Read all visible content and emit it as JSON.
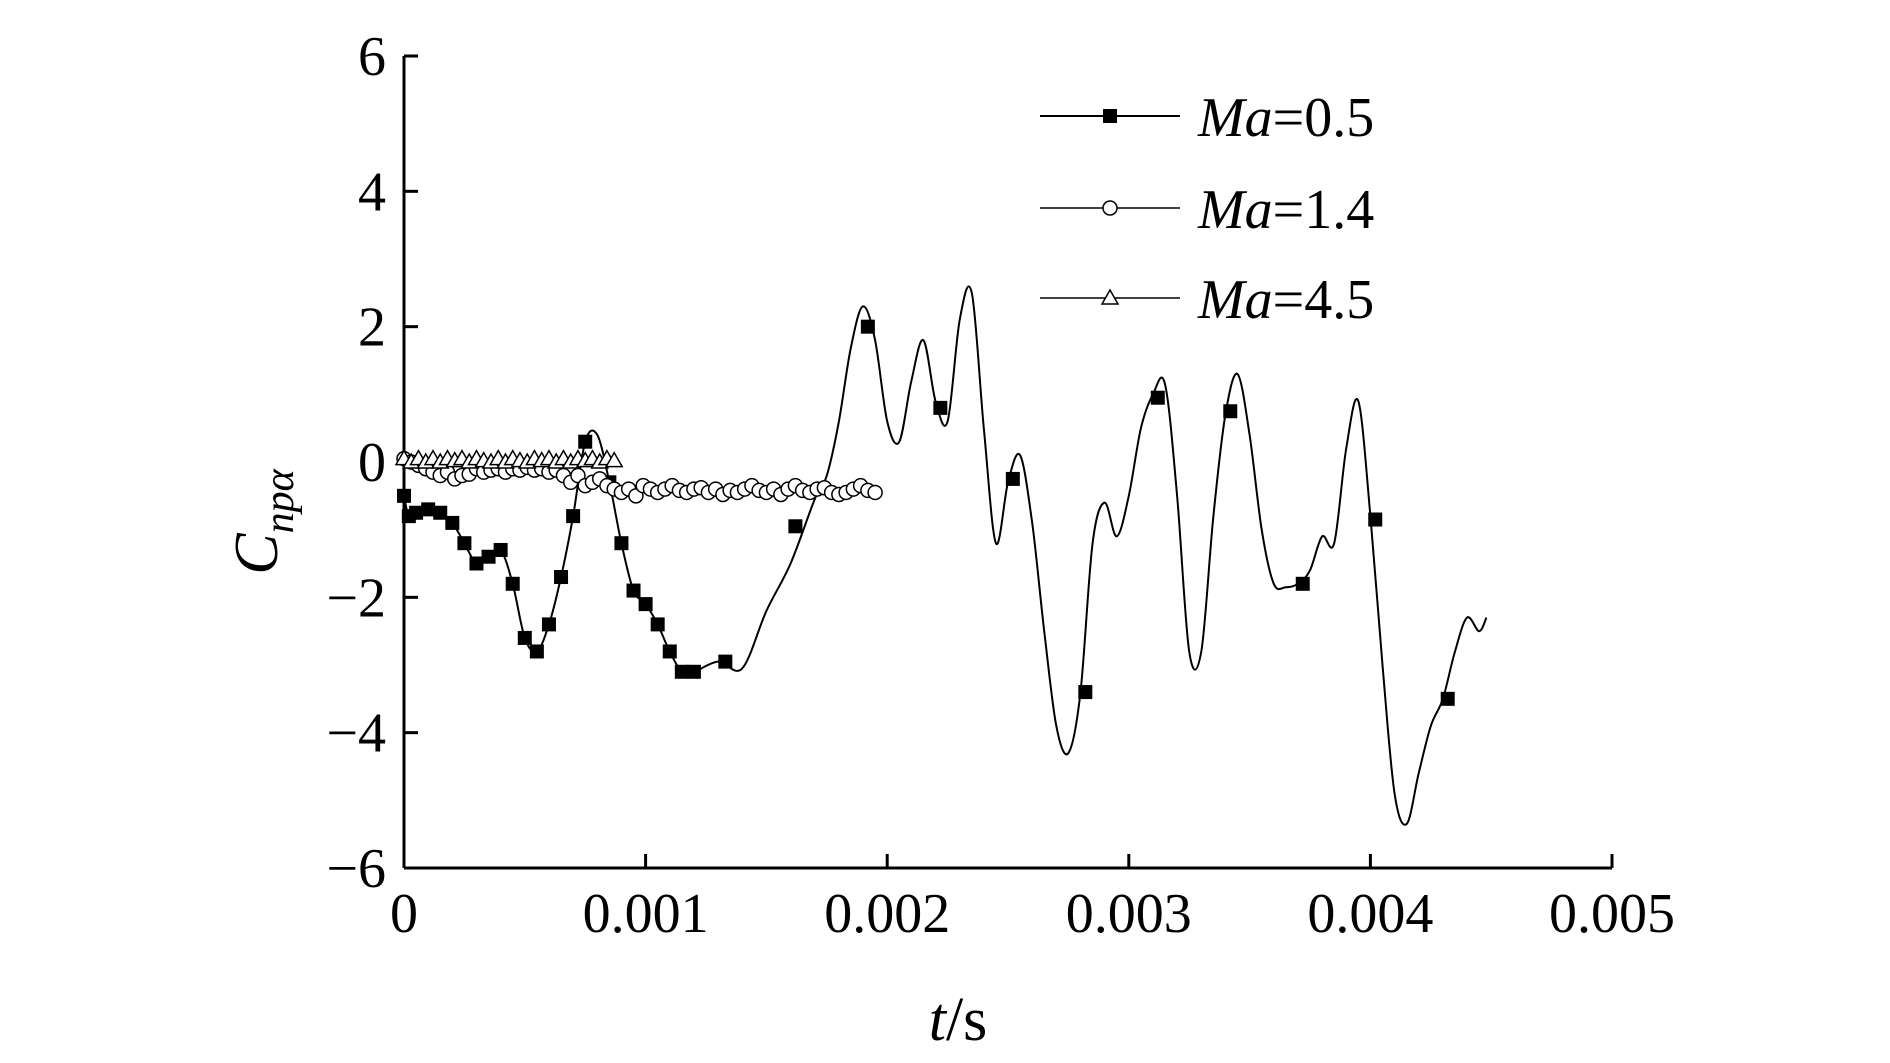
{
  "chart_data": {
    "type": "line",
    "title": "",
    "xlabel": {
      "var": "t",
      "unit": "/s"
    },
    "ylabel": {
      "var": "C",
      "sub": "npα"
    },
    "xlim": [
      0,
      0.005
    ],
    "ylim": [
      -6,
      6
    ],
    "x_ticks": [
      0,
      0.001,
      0.002,
      0.003,
      0.004,
      0.005
    ],
    "x_tick_labels": [
      "0",
      "0.001",
      "0.002",
      "0.003",
      "0.004",
      "0.005"
    ],
    "y_ticks": [
      -6,
      -4,
      -2,
      0,
      2,
      4,
      6
    ],
    "y_tick_labels": [
      "−6",
      "−4",
      "−2",
      "0",
      "2",
      "4",
      "6"
    ],
    "grid": false,
    "legend_position": "top-right",
    "series": [
      {
        "name": "Ma=0.5",
        "legend_var": "Ma",
        "legend_value": "=0.5",
        "marker": "filled-square",
        "line_width": 2,
        "x": [
          0.0,
          2e-05,
          5e-05,
          0.0001,
          0.00015,
          0.0002,
          0.00025,
          0.0003,
          0.00035,
          0.0004,
          0.00045,
          0.0005,
          0.00055,
          0.0006,
          0.00065,
          0.0007,
          0.00075,
          0.0008,
          0.00085,
          0.0009,
          0.00095,
          0.001,
          0.00105,
          0.0011,
          0.00115,
          0.0012,
          0.0013,
          0.0014,
          0.0015,
          0.0016,
          0.0017,
          0.00175,
          0.0018,
          0.00185,
          0.0019,
          0.00195,
          0.002,
          0.00205,
          0.0021,
          0.00215,
          0.0022,
          0.00225,
          0.0023,
          0.00235,
          0.0024,
          0.00245,
          0.0025,
          0.00255,
          0.0026,
          0.00265,
          0.0027,
          0.00275,
          0.0028,
          0.00285,
          0.0029,
          0.00295,
          0.003,
          0.00305,
          0.0031,
          0.00315,
          0.0032,
          0.00325,
          0.0033,
          0.00335,
          0.0034,
          0.00345,
          0.0035,
          0.00355,
          0.0036,
          0.00365,
          0.0037,
          0.00375,
          0.0038,
          0.00385,
          0.0039,
          0.00395,
          0.004,
          0.00405,
          0.0041,
          0.00415,
          0.0042,
          0.00425,
          0.0043,
          0.00435,
          0.0044,
          0.00445,
          0.00448
        ],
        "y": [
          -0.5,
          -0.8,
          -0.75,
          -0.7,
          -0.75,
          -0.9,
          -1.2,
          -1.5,
          -1.4,
          -1.3,
          -1.8,
          -2.6,
          -2.8,
          -2.4,
          -1.7,
          -0.8,
          0.3,
          0.4,
          -0.3,
          -1.2,
          -1.9,
          -2.1,
          -2.4,
          -2.8,
          -3.1,
          -3.1,
          -2.95,
          -3.05,
          -2.2,
          -1.5,
          -0.55,
          -0.2,
          0.6,
          1.7,
          2.3,
          1.8,
          0.6,
          0.3,
          1.2,
          1.8,
          0.9,
          0.6,
          2.1,
          2.5,
          0.5,
          -1.2,
          -0.3,
          0.1,
          -0.9,
          -2.5,
          -3.9,
          -4.3,
          -3.4,
          -1.2,
          -0.6,
          -1.1,
          -0.5,
          0.5,
          1.0,
          1.15,
          -0.5,
          -2.8,
          -2.8,
          -0.8,
          0.7,
          1.3,
          0.4,
          -1.0,
          -1.8,
          -1.85,
          -1.8,
          -1.6,
          -1.1,
          -1.2,
          0.2,
          0.9,
          -0.8,
          -3.0,
          -4.9,
          -5.35,
          -4.6,
          -3.9,
          -3.5,
          -2.8,
          -2.3,
          -2.5,
          -2.3
        ],
        "markers_x": [
          0.0,
          2e-05,
          5e-05,
          0.0001,
          0.00015,
          0.0002,
          0.00025,
          0.0003,
          0.00035,
          0.0004,
          0.00045,
          0.0005,
          0.00055,
          0.0006,
          0.00065,
          0.0007,
          0.00075,
          0.00085,
          0.0009,
          0.00095,
          0.001,
          0.00105,
          0.0011,
          0.00115,
          0.0012,
          0.00133,
          0.00162,
          0.00192,
          0.00222,
          0.00252,
          0.00282,
          0.00312,
          0.00342,
          0.00372,
          0.00402,
          0.00432
        ],
        "markers_y": [
          -0.5,
          -0.8,
          -0.75,
          -0.7,
          -0.75,
          -0.9,
          -1.2,
          -1.5,
          -1.4,
          -1.3,
          -1.8,
          -2.6,
          -2.8,
          -2.4,
          -1.7,
          -0.8,
          0.3,
          -0.3,
          -1.2,
          -1.9,
          -2.1,
          -2.4,
          -2.8,
          -3.1,
          -3.1,
          -2.95,
          -0.95,
          2.0,
          0.8,
          -0.25,
          -3.4,
          0.95,
          0.75,
          -1.8,
          -0.85,
          -3.5
        ]
      },
      {
        "name": "Ma=1.4",
        "legend_var": "Ma",
        "legend_value": "=1.4",
        "marker": "open-circle",
        "line_width": 1.5,
        "x": [
          0.0,
          3e-05,
          6e-05,
          9e-05,
          0.00012,
          0.00015,
          0.00018,
          0.00021,
          0.00024,
          0.00027,
          0.0003,
          0.00033,
          0.00036,
          0.00039,
          0.00042,
          0.00045,
          0.00048,
          0.00051,
          0.00054,
          0.00057,
          0.0006,
          0.00063,
          0.00066,
          0.00069,
          0.00072,
          0.00075,
          0.00078,
          0.00081,
          0.00084,
          0.00087,
          0.0009,
          0.00093,
          0.00096,
          0.00099,
          0.00102,
          0.00105,
          0.00108,
          0.00111,
          0.00114,
          0.00117,
          0.0012,
          0.00123,
          0.00126,
          0.00129,
          0.00132,
          0.00135,
          0.00138,
          0.00141,
          0.00144,
          0.00147,
          0.0015,
          0.00153,
          0.00156,
          0.00159,
          0.00162,
          0.00165,
          0.00168,
          0.00171,
          0.00174,
          0.00177,
          0.0018,
          0.00183,
          0.00186,
          0.00189,
          0.00192,
          0.00195
        ],
        "y": [
          0.05,
          0.0,
          -0.05,
          -0.1,
          -0.15,
          -0.2,
          -0.15,
          -0.25,
          -0.2,
          -0.18,
          -0.1,
          -0.15,
          -0.12,
          -0.1,
          -0.15,
          -0.1,
          -0.12,
          -0.08,
          -0.12,
          -0.1,
          -0.15,
          -0.12,
          -0.2,
          -0.3,
          -0.2,
          -0.35,
          -0.3,
          -0.25,
          -0.35,
          -0.4,
          -0.45,
          -0.4,
          -0.5,
          -0.35,
          -0.4,
          -0.45,
          -0.4,
          -0.35,
          -0.42,
          -0.45,
          -0.4,
          -0.38,
          -0.45,
          -0.4,
          -0.48,
          -0.42,
          -0.45,
          -0.4,
          -0.35,
          -0.42,
          -0.45,
          -0.4,
          -0.48,
          -0.4,
          -0.35,
          -0.42,
          -0.45,
          -0.4,
          -0.38,
          -0.45,
          -0.48,
          -0.45,
          -0.4,
          -0.35,
          -0.42,
          -0.45
        ]
      },
      {
        "name": "Ma=4.5",
        "legend_var": "Ma",
        "legend_value": "=4.5",
        "marker": "open-triangle",
        "line_width": 1.5,
        "x": [
          0.0,
          3e-05,
          6e-05,
          9e-05,
          0.00012,
          0.00015,
          0.00018,
          0.00021,
          0.00024,
          0.00027,
          0.0003,
          0.00033,
          0.00036,
          0.00039,
          0.00042,
          0.00045,
          0.00048,
          0.00051,
          0.00054,
          0.00057,
          0.0006,
          0.00063,
          0.00066,
          0.00069,
          0.00072,
          0.00075,
          0.00078,
          0.00081,
          0.00084,
          0.00087
        ],
        "y": [
          0.05,
          0.0,
          0.05,
          0.0,
          0.05,
          0.0,
          0.05,
          0.02,
          0.05,
          0.0,
          0.05,
          0.02,
          0.0,
          0.05,
          0.0,
          0.05,
          0.02,
          0.0,
          0.05,
          0.02,
          0.05,
          0.0,
          0.05,
          0.0,
          0.05,
          0.02,
          0.05,
          0.0,
          0.05,
          0.02
        ]
      }
    ]
  }
}
